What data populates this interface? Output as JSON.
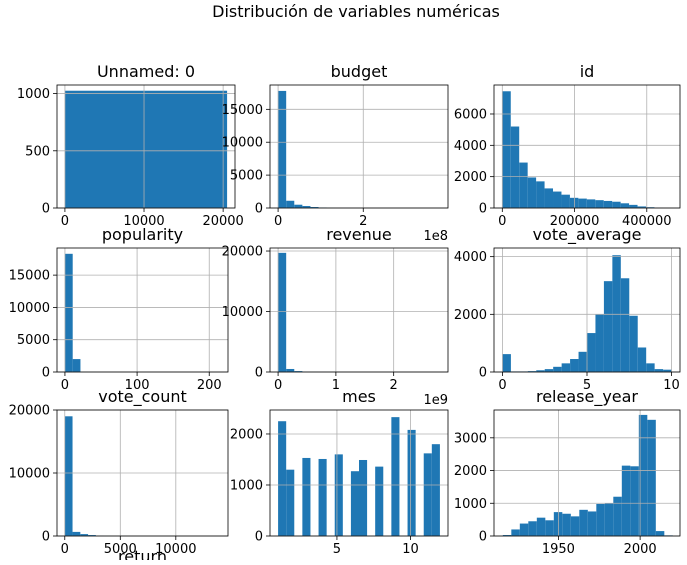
{
  "figure": {
    "suptitle": "Distribución de variables numéricas"
  },
  "colors": {
    "bar": "#1f77b4",
    "grid": "#b0b0b0",
    "axis": "#000000",
    "background": "#ffffff"
  },
  "chart_data": [
    {
      "type": "bar",
      "title": "Unnamed: 0",
      "xlim": [
        -1000,
        21500
      ],
      "ylim": [
        0,
        1075
      ],
      "grid": true,
      "bin_edges": [
        0,
        20500
      ],
      "values": [
        1025
      ],
      "xticks": [
        {
          "v": 0,
          "label": "0"
        },
        {
          "v": 10000,
          "label": "10000"
        },
        {
          "v": 20000,
          "label": "20000"
        }
      ],
      "yticks": [
        {
          "v": 0,
          "label": "0"
        },
        {
          "v": 500,
          "label": "500"
        },
        {
          "v": 1000,
          "label": "1000"
        }
      ]
    },
    {
      "type": "bar",
      "title": "budget",
      "xlim": [
        -0.19,
        3.99
      ],
      "ylim": [
        0,
        18700
      ],
      "grid": true,
      "x_offset_label": "1e8",
      "bin_edges": [
        0,
        0.19,
        0.38,
        0.57,
        0.76,
        0.95,
        1.14,
        1.33,
        1.52,
        1.71,
        1.9,
        2.09,
        2.28,
        2.47,
        2.66,
        2.85,
        3.04,
        3.23,
        3.42,
        3.61,
        3.8
      ],
      "values": [
        17800,
        1100,
        500,
        300,
        150,
        80,
        40,
        25,
        10,
        5,
        3,
        2,
        1,
        1,
        1,
        0,
        0,
        0,
        0,
        1
      ],
      "xticks": [
        {
          "v": 0,
          "label": "0"
        },
        {
          "v": 2,
          "label": "2"
        }
      ],
      "yticks": [
        {
          "v": 0,
          "label": "0"
        },
        {
          "v": 5000,
          "label": "5000"
        },
        {
          "v": 10000,
          "label": "10000"
        },
        {
          "v": 15000,
          "label": "15000"
        }
      ]
    },
    {
      "type": "bar",
      "title": "id",
      "xlim": [
        -23000,
        492000
      ],
      "ylim": [
        0,
        7850
      ],
      "grid": true,
      "bin_edges": [
        2,
        23400,
        46800,
        70200,
        93600,
        117000,
        140400,
        163800,
        187200,
        210600,
        234000,
        257400,
        280800,
        304200,
        327600,
        351000,
        374400,
        397800,
        421200,
        444600,
        468000
      ],
      "values": [
        7450,
        5200,
        2900,
        1950,
        1700,
        1250,
        1050,
        850,
        650,
        600,
        550,
        500,
        450,
        400,
        300,
        200,
        100,
        50,
        20,
        10
      ],
      "xticks": [
        {
          "v": 0,
          "label": "0"
        },
        {
          "v": 200000,
          "label": "200000"
        },
        {
          "v": 400000,
          "label": "400000"
        }
      ],
      "yticks": [
        {
          "v": 0,
          "label": "0"
        },
        {
          "v": 2000,
          "label": "2000"
        },
        {
          "v": 4000,
          "label": "4000"
        },
        {
          "v": 6000,
          "label": "6000"
        }
      ]
    },
    {
      "type": "bar",
      "title": "popularity",
      "xlim": [
        -11,
        226
      ],
      "ylim": [
        0,
        19200
      ],
      "grid": true,
      "bin_edges": [
        0,
        10.75,
        21.5,
        32.25,
        43,
        53.75,
        64.5,
        75.25,
        86,
        96.75,
        107.5,
        118.25,
        129,
        139.75,
        150.5,
        161.25,
        172,
        182.75,
        193.5,
        204.25,
        215
      ],
      "values": [
        18300,
        2000,
        30,
        10,
        5,
        0,
        0,
        0,
        0,
        0,
        0,
        0,
        0,
        0,
        0,
        0,
        0,
        0,
        0,
        1
      ],
      "xticks": [
        {
          "v": 0,
          "label": "0"
        },
        {
          "v": 100,
          "label": "100"
        },
        {
          "v": 200,
          "label": "200"
        }
      ],
      "yticks": [
        {
          "v": 0,
          "label": "0"
        },
        {
          "v": 5000,
          "label": "5000"
        },
        {
          "v": 10000,
          "label": "10000"
        },
        {
          "v": 15000,
          "label": "15000"
        }
      ]
    },
    {
      "type": "bar",
      "title": "revenue",
      "xlim": [
        -0.14,
        2.94
      ],
      "ylim": [
        0,
        20500
      ],
      "grid": true,
      "x_offset_label": "1e9",
      "bin_edges": [
        0,
        0.14,
        0.28,
        0.42,
        0.56,
        0.7,
        0.84,
        0.98,
        1.12,
        1.26,
        1.4,
        1.54,
        1.68,
        1.82,
        1.96,
        2.1,
        2.24,
        2.38,
        2.52,
        2.66,
        2.8
      ],
      "values": [
        19700,
        500,
        150,
        60,
        30,
        15,
        8,
        5,
        3,
        2,
        1,
        1,
        1,
        0,
        0,
        0,
        0,
        0,
        0,
        1
      ],
      "xticks": [
        {
          "v": 0,
          "label": "0"
        },
        {
          "v": 1,
          "label": "1"
        },
        {
          "v": 2,
          "label": "2"
        }
      ],
      "yticks": [
        {
          "v": 0,
          "label": "0"
        },
        {
          "v": 10000,
          "label": "10000"
        },
        {
          "v": 20000,
          "label": "20000"
        }
      ]
    },
    {
      "type": "bar",
      "title": "vote_average",
      "xlim": [
        -0.5,
        10.5
      ],
      "ylim": [
        0,
        4300
      ],
      "grid": true,
      "bin_edges": [
        0,
        0.5,
        1,
        1.5,
        2,
        2.5,
        3,
        3.5,
        4,
        4.5,
        5,
        5.5,
        6,
        6.5,
        7,
        7.5,
        8,
        8.5,
        9,
        9.5,
        10
      ],
      "values": [
        620,
        20,
        20,
        30,
        60,
        100,
        180,
        300,
        450,
        700,
        1350,
        2000,
        3150,
        4050,
        3250,
        1950,
        850,
        300,
        100,
        80
      ],
      "xticks": [
        {
          "v": 0,
          "label": "0"
        },
        {
          "v": 5,
          "label": "5"
        },
        {
          "v": 10,
          "label": "10"
        }
      ],
      "yticks": [
        {
          "v": 0,
          "label": "0"
        },
        {
          "v": 2000,
          "label": "2000"
        },
        {
          "v": 4000,
          "label": "4000"
        }
      ]
    },
    {
      "type": "bar",
      "title": "vote_count",
      "xlim": [
        -700,
        14700
      ],
      "ylim": [
        0,
        20000
      ],
      "grid": true,
      "bin_edges": [
        0,
        700,
        1400,
        2100,
        2800,
        3500,
        4200,
        4900,
        5600,
        6300,
        7000,
        7700,
        8400,
        9100,
        9800,
        10500,
        11200,
        11900,
        12600,
        13300,
        14000
      ],
      "values": [
        19000,
        650,
        300,
        150,
        80,
        40,
        20,
        10,
        5,
        3,
        2,
        1,
        1,
        1,
        0,
        0,
        0,
        0,
        0,
        1
      ],
      "xticks": [
        {
          "v": 0,
          "label": "0"
        },
        {
          "v": 5000,
          "label": "5000"
        },
        {
          "v": 10000,
          "label": "10000"
        }
      ],
      "yticks": [
        {
          "v": 0,
          "label": "0"
        },
        {
          "v": 10000,
          "label": "10000"
        },
        {
          "v": 20000,
          "label": "20000"
        }
      ]
    },
    {
      "type": "bar",
      "title": "mes",
      "xlim": [
        0.45,
        12.55
      ],
      "ylim": [
        0,
        2470
      ],
      "grid": true,
      "bin_edges": [
        1,
        1.55,
        2.1,
        2.65,
        3.2,
        3.75,
        4.3,
        4.85,
        5.4,
        5.95,
        6.5,
        7.05,
        7.6,
        8.15,
        8.7,
        9.25,
        9.8,
        10.35,
        10.9,
        11.45,
        12
      ],
      "values": [
        2250,
        1300,
        0,
        1530,
        0,
        1510,
        0,
        1600,
        0,
        1270,
        1490,
        0,
        1360,
        0,
        2330,
        0,
        2080,
        0,
        1620,
        1800
      ],
      "xticks": [
        {
          "v": 5,
          "label": "5"
        },
        {
          "v": 10,
          "label": "10"
        }
      ],
      "yticks": [
        {
          "v": 0,
          "label": "0"
        },
        {
          "v": 1000,
          "label": "1000"
        },
        {
          "v": 2000,
          "label": "2000"
        }
      ]
    },
    {
      "type": "bar",
      "title": "release_year",
      "xlim": [
        1910.6,
        2024.4
      ],
      "ylim": [
        0,
        3850
      ],
      "grid": true,
      "bin_edges": [
        1916,
        1921.2,
        1926.4,
        1931.6,
        1936.8,
        1942,
        1947.2,
        1952.4,
        1957.6,
        1962.8,
        1968,
        1973.2,
        1978.4,
        1983.6,
        1988.8,
        1994,
        1999.2,
        2004.4,
        2009.6,
        2014.8,
        2020
      ],
      "values": [
        30,
        200,
        380,
        450,
        560,
        480,
        730,
        680,
        600,
        800,
        750,
        980,
        1000,
        1200,
        2150,
        2130,
        3700,
        3550,
        150,
        20
      ],
      "xticks": [
        {
          "v": 1950,
          "label": "1950"
        },
        {
          "v": 2000,
          "label": "2000"
        }
      ],
      "yticks": [
        {
          "v": 0,
          "label": "0"
        },
        {
          "v": 1000,
          "label": "1000"
        },
        {
          "v": 2000,
          "label": "2000"
        },
        {
          "v": 3000,
          "label": "3000"
        }
      ]
    },
    {
      "type": "bar",
      "title": "return",
      "partially_visible": true
    }
  ]
}
